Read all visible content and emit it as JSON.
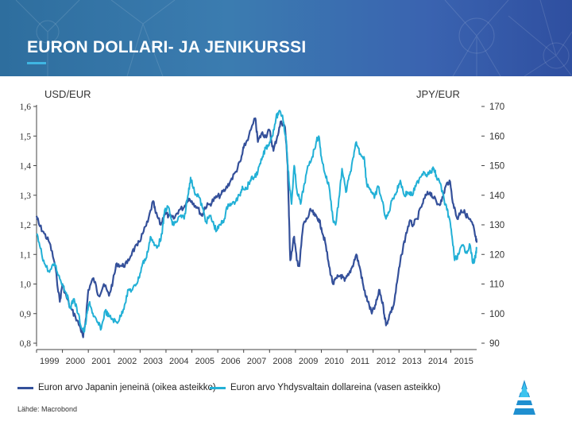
{
  "header": {
    "title": "EURON DOLLARI- JA JENIKURSSI"
  },
  "source": "Lähde: Macrobond",
  "logo": {
    "icon": "institution-logo-icon"
  },
  "colors": {
    "header_bg": "#3a6fb0",
    "accent": "#3fb6e3",
    "jpy_series": "#34509a",
    "usd_series": "#22b0d6"
  },
  "chart_data": {
    "type": "line",
    "title": "",
    "left_axis_title": "USD/EUR",
    "right_axis_title": "JPY/EUR",
    "y_left": {
      "ticks": [
        "1,6",
        "1,5",
        "1,4",
        "1,3",
        "1,2",
        "1,1",
        "1,0",
        "0,9",
        "0,8"
      ],
      "range": [
        0.8,
        1.6
      ]
    },
    "y_right": {
      "ticks": [
        "170",
        "160",
        "150",
        "140",
        "130",
        "120",
        "110",
        "100",
        "90"
      ],
      "range": [
        90,
        170
      ]
    },
    "x": {
      "ticks": [
        "1999",
        "2000",
        "2001",
        "2002",
        "2003",
        "2004",
        "2005",
        "2006",
        "2007",
        "2008",
        "2009",
        "2010",
        "2011",
        "2012",
        "2013",
        "2014",
        "2015"
      ],
      "range": [
        1999.0,
        2016.0
      ]
    },
    "grid": false,
    "legend_placement": "bottom",
    "series": [
      {
        "name": "Euron arvo Japanin jeneinä (oikea asteikko)",
        "axis": "right",
        "points": [
          [
            1999.0,
            133
          ],
          [
            1999.1,
            130
          ],
          [
            1999.3,
            127
          ],
          [
            1999.5,
            124
          ],
          [
            1999.7,
            117
          ],
          [
            1999.9,
            104
          ],
          [
            2000.0,
            110
          ],
          [
            2000.1,
            107
          ],
          [
            2000.3,
            102
          ],
          [
            2000.5,
            99
          ],
          [
            2000.7,
            95
          ],
          [
            2000.8,
            92
          ],
          [
            2000.9,
            98
          ],
          [
            2001.0,
            108
          ],
          [
            2001.2,
            112
          ],
          [
            2001.4,
            106
          ],
          [
            2001.6,
            110
          ],
          [
            2001.8,
            106
          ],
          [
            2001.95,
            111
          ],
          [
            2002.1,
            117
          ],
          [
            2002.3,
            116
          ],
          [
            2002.5,
            117
          ],
          [
            2002.7,
            121
          ],
          [
            2002.9,
            123
          ],
          [
            2003.1,
            127
          ],
          [
            2003.3,
            131
          ],
          [
            2003.5,
            138
          ],
          [
            2003.6,
            134
          ],
          [
            2003.8,
            130
          ],
          [
            2003.95,
            134
          ],
          [
            2004.1,
            133
          ],
          [
            2004.3,
            132
          ],
          [
            2004.5,
            135
          ],
          [
            2004.7,
            136
          ],
          [
            2004.85,
            139
          ],
          [
            2005.0,
            138
          ],
          [
            2005.2,
            136
          ],
          [
            2005.4,
            133
          ],
          [
            2005.5,
            136
          ],
          [
            2005.7,
            137
          ],
          [
            2005.9,
            139
          ],
          [
            2006.1,
            140
          ],
          [
            2006.3,
            142
          ],
          [
            2006.5,
            145
          ],
          [
            2006.7,
            148
          ],
          [
            2006.9,
            152
          ],
          [
            2007.0,
            156
          ],
          [
            2007.2,
            160
          ],
          [
            2007.45,
            166
          ],
          [
            2007.55,
            158
          ],
          [
            2007.7,
            161
          ],
          [
            2007.85,
            160
          ],
          [
            2008.0,
            162
          ],
          [
            2008.15,
            155
          ],
          [
            2008.3,
            160
          ],
          [
            2008.45,
            165
          ],
          [
            2008.6,
            163
          ],
          [
            2008.7,
            150
          ],
          [
            2008.75,
            133
          ],
          [
            2008.8,
            118
          ],
          [
            2008.95,
            126
          ],
          [
            2009.05,
            118
          ],
          [
            2009.15,
            116
          ],
          [
            2009.3,
            130
          ],
          [
            2009.45,
            132
          ],
          [
            2009.6,
            135
          ],
          [
            2009.75,
            133
          ],
          [
            2009.9,
            132
          ],
          [
            2010.0,
            129
          ],
          [
            2010.15,
            124
          ],
          [
            2010.3,
            116
          ],
          [
            2010.45,
            110
          ],
          [
            2010.6,
            112
          ],
          [
            2010.75,
            113
          ],
          [
            2010.9,
            111
          ],
          [
            2011.05,
            113
          ],
          [
            2011.2,
            116
          ],
          [
            2011.35,
            120
          ],
          [
            2011.5,
            115
          ],
          [
            2011.65,
            108
          ],
          [
            2011.8,
            104
          ],
          [
            2011.95,
            100
          ],
          [
            2012.1,
            103
          ],
          [
            2012.25,
            108
          ],
          [
            2012.4,
            102
          ],
          [
            2012.5,
            96
          ],
          [
            2012.65,
            100
          ],
          [
            2012.8,
            103
          ],
          [
            2012.95,
            112
          ],
          [
            2013.1,
            120
          ],
          [
            2013.25,
            126
          ],
          [
            2013.4,
            131
          ],
          [
            2013.55,
            130
          ],
          [
            2013.7,
            132
          ],
          [
            2013.9,
            137
          ],
          [
            2014.05,
            140
          ],
          [
            2014.2,
            141
          ],
          [
            2014.35,
            139
          ],
          [
            2014.5,
            137
          ],
          [
            2014.65,
            138
          ],
          [
            2014.8,
            143
          ],
          [
            2014.95,
            145
          ],
          [
            2015.1,
            137
          ],
          [
            2015.25,
            132
          ],
          [
            2015.4,
            135
          ],
          [
            2015.55,
            134
          ],
          [
            2015.7,
            132
          ],
          [
            2015.85,
            130
          ],
          [
            2015.95,
            126
          ],
          [
            2016.0,
            124
          ]
        ]
      },
      {
        "name": "Euron arvo Yhdysvaltain dollareina (vasen asteikko)",
        "axis": "left",
        "points": [
          [
            1999.0,
            1.17
          ],
          [
            1999.15,
            1.12
          ],
          [
            1999.3,
            1.07
          ],
          [
            1999.5,
            1.04
          ],
          [
            1999.7,
            1.07
          ],
          [
            1999.85,
            1.03
          ],
          [
            2000.0,
            1.0
          ],
          [
            2000.15,
            0.97
          ],
          [
            2000.3,
            0.92
          ],
          [
            2000.45,
            0.95
          ],
          [
            2000.6,
            0.9
          ],
          [
            2000.75,
            0.85
          ],
          [
            2000.85,
            0.84
          ],
          [
            2000.95,
            0.9
          ],
          [
            2001.05,
            0.94
          ],
          [
            2001.2,
            0.89
          ],
          [
            2001.35,
            0.87
          ],
          [
            2001.5,
            0.85
          ],
          [
            2001.65,
            0.91
          ],
          [
            2001.8,
            0.89
          ],
          [
            2001.95,
            0.88
          ],
          [
            2002.1,
            0.87
          ],
          [
            2002.25,
            0.89
          ],
          [
            2002.4,
            0.93
          ],
          [
            2002.55,
            0.98
          ],
          [
            2002.7,
            0.98
          ],
          [
            2002.85,
            1.0
          ],
          [
            2002.95,
            1.02
          ],
          [
            2003.1,
            1.07
          ],
          [
            2003.25,
            1.09
          ],
          [
            2003.4,
            1.16
          ],
          [
            2003.55,
            1.13
          ],
          [
            2003.7,
            1.13
          ],
          [
            2003.85,
            1.17
          ],
          [
            2003.95,
            1.25
          ],
          [
            2004.1,
            1.26
          ],
          [
            2004.25,
            1.2
          ],
          [
            2004.4,
            1.21
          ],
          [
            2004.55,
            1.23
          ],
          [
            2004.7,
            1.22
          ],
          [
            2004.85,
            1.3
          ],
          [
            2004.95,
            1.36
          ],
          [
            2005.1,
            1.31
          ],
          [
            2005.25,
            1.3
          ],
          [
            2005.4,
            1.26
          ],
          [
            2005.55,
            1.21
          ],
          [
            2005.7,
            1.23
          ],
          [
            2005.85,
            1.2
          ],
          [
            2005.95,
            1.18
          ],
          [
            2006.1,
            1.2
          ],
          [
            2006.25,
            1.22
          ],
          [
            2006.4,
            1.27
          ],
          [
            2006.55,
            1.27
          ],
          [
            2006.7,
            1.28
          ],
          [
            2006.85,
            1.3
          ],
          [
            2006.95,
            1.33
          ],
          [
            2007.1,
            1.32
          ],
          [
            2007.25,
            1.35
          ],
          [
            2007.4,
            1.36
          ],
          [
            2007.55,
            1.38
          ],
          [
            2007.7,
            1.42
          ],
          [
            2007.85,
            1.46
          ],
          [
            2007.95,
            1.47
          ],
          [
            2008.1,
            1.5
          ],
          [
            2008.25,
            1.56
          ],
          [
            2008.35,
            1.58
          ],
          [
            2008.5,
            1.57
          ],
          [
            2008.65,
            1.48
          ],
          [
            2008.75,
            1.35
          ],
          [
            2008.85,
            1.27
          ],
          [
            2008.95,
            1.4
          ],
          [
            2009.05,
            1.32
          ],
          [
            2009.2,
            1.27
          ],
          [
            2009.35,
            1.34
          ],
          [
            2009.5,
            1.4
          ],
          [
            2009.65,
            1.43
          ],
          [
            2009.8,
            1.48
          ],
          [
            2009.9,
            1.5
          ],
          [
            2010.0,
            1.43
          ],
          [
            2010.15,
            1.37
          ],
          [
            2010.3,
            1.33
          ],
          [
            2010.45,
            1.22
          ],
          [
            2010.55,
            1.2
          ],
          [
            2010.7,
            1.3
          ],
          [
            2010.8,
            1.39
          ],
          [
            2010.95,
            1.31
          ],
          [
            2011.1,
            1.37
          ],
          [
            2011.25,
            1.43
          ],
          [
            2011.35,
            1.48
          ],
          [
            2011.5,
            1.44
          ],
          [
            2011.65,
            1.43
          ],
          [
            2011.75,
            1.34
          ],
          [
            2011.9,
            1.32
          ],
          [
            2012.05,
            1.29
          ],
          [
            2012.2,
            1.33
          ],
          [
            2012.35,
            1.28
          ],
          [
            2012.5,
            1.22
          ],
          [
            2012.6,
            1.24
          ],
          [
            2012.75,
            1.29
          ],
          [
            2012.9,
            1.31
          ],
          [
            2013.05,
            1.35
          ],
          [
            2013.2,
            1.3
          ],
          [
            2013.35,
            1.31
          ],
          [
            2013.5,
            1.3
          ],
          [
            2013.65,
            1.33
          ],
          [
            2013.8,
            1.36
          ],
          [
            2013.95,
            1.38
          ],
          [
            2014.1,
            1.37
          ],
          [
            2014.25,
            1.38
          ],
          [
            2014.35,
            1.39
          ],
          [
            2014.45,
            1.36
          ],
          [
            2014.6,
            1.34
          ],
          [
            2014.75,
            1.28
          ],
          [
            2014.85,
            1.25
          ],
          [
            2014.95,
            1.22
          ],
          [
            2015.05,
            1.16
          ],
          [
            2015.15,
            1.08
          ],
          [
            2015.3,
            1.1
          ],
          [
            2015.45,
            1.13
          ],
          [
            2015.6,
            1.11
          ],
          [
            2015.75,
            1.13
          ],
          [
            2015.85,
            1.07
          ],
          [
            2015.95,
            1.09
          ],
          [
            2016.0,
            1.12
          ]
        ]
      }
    ]
  }
}
